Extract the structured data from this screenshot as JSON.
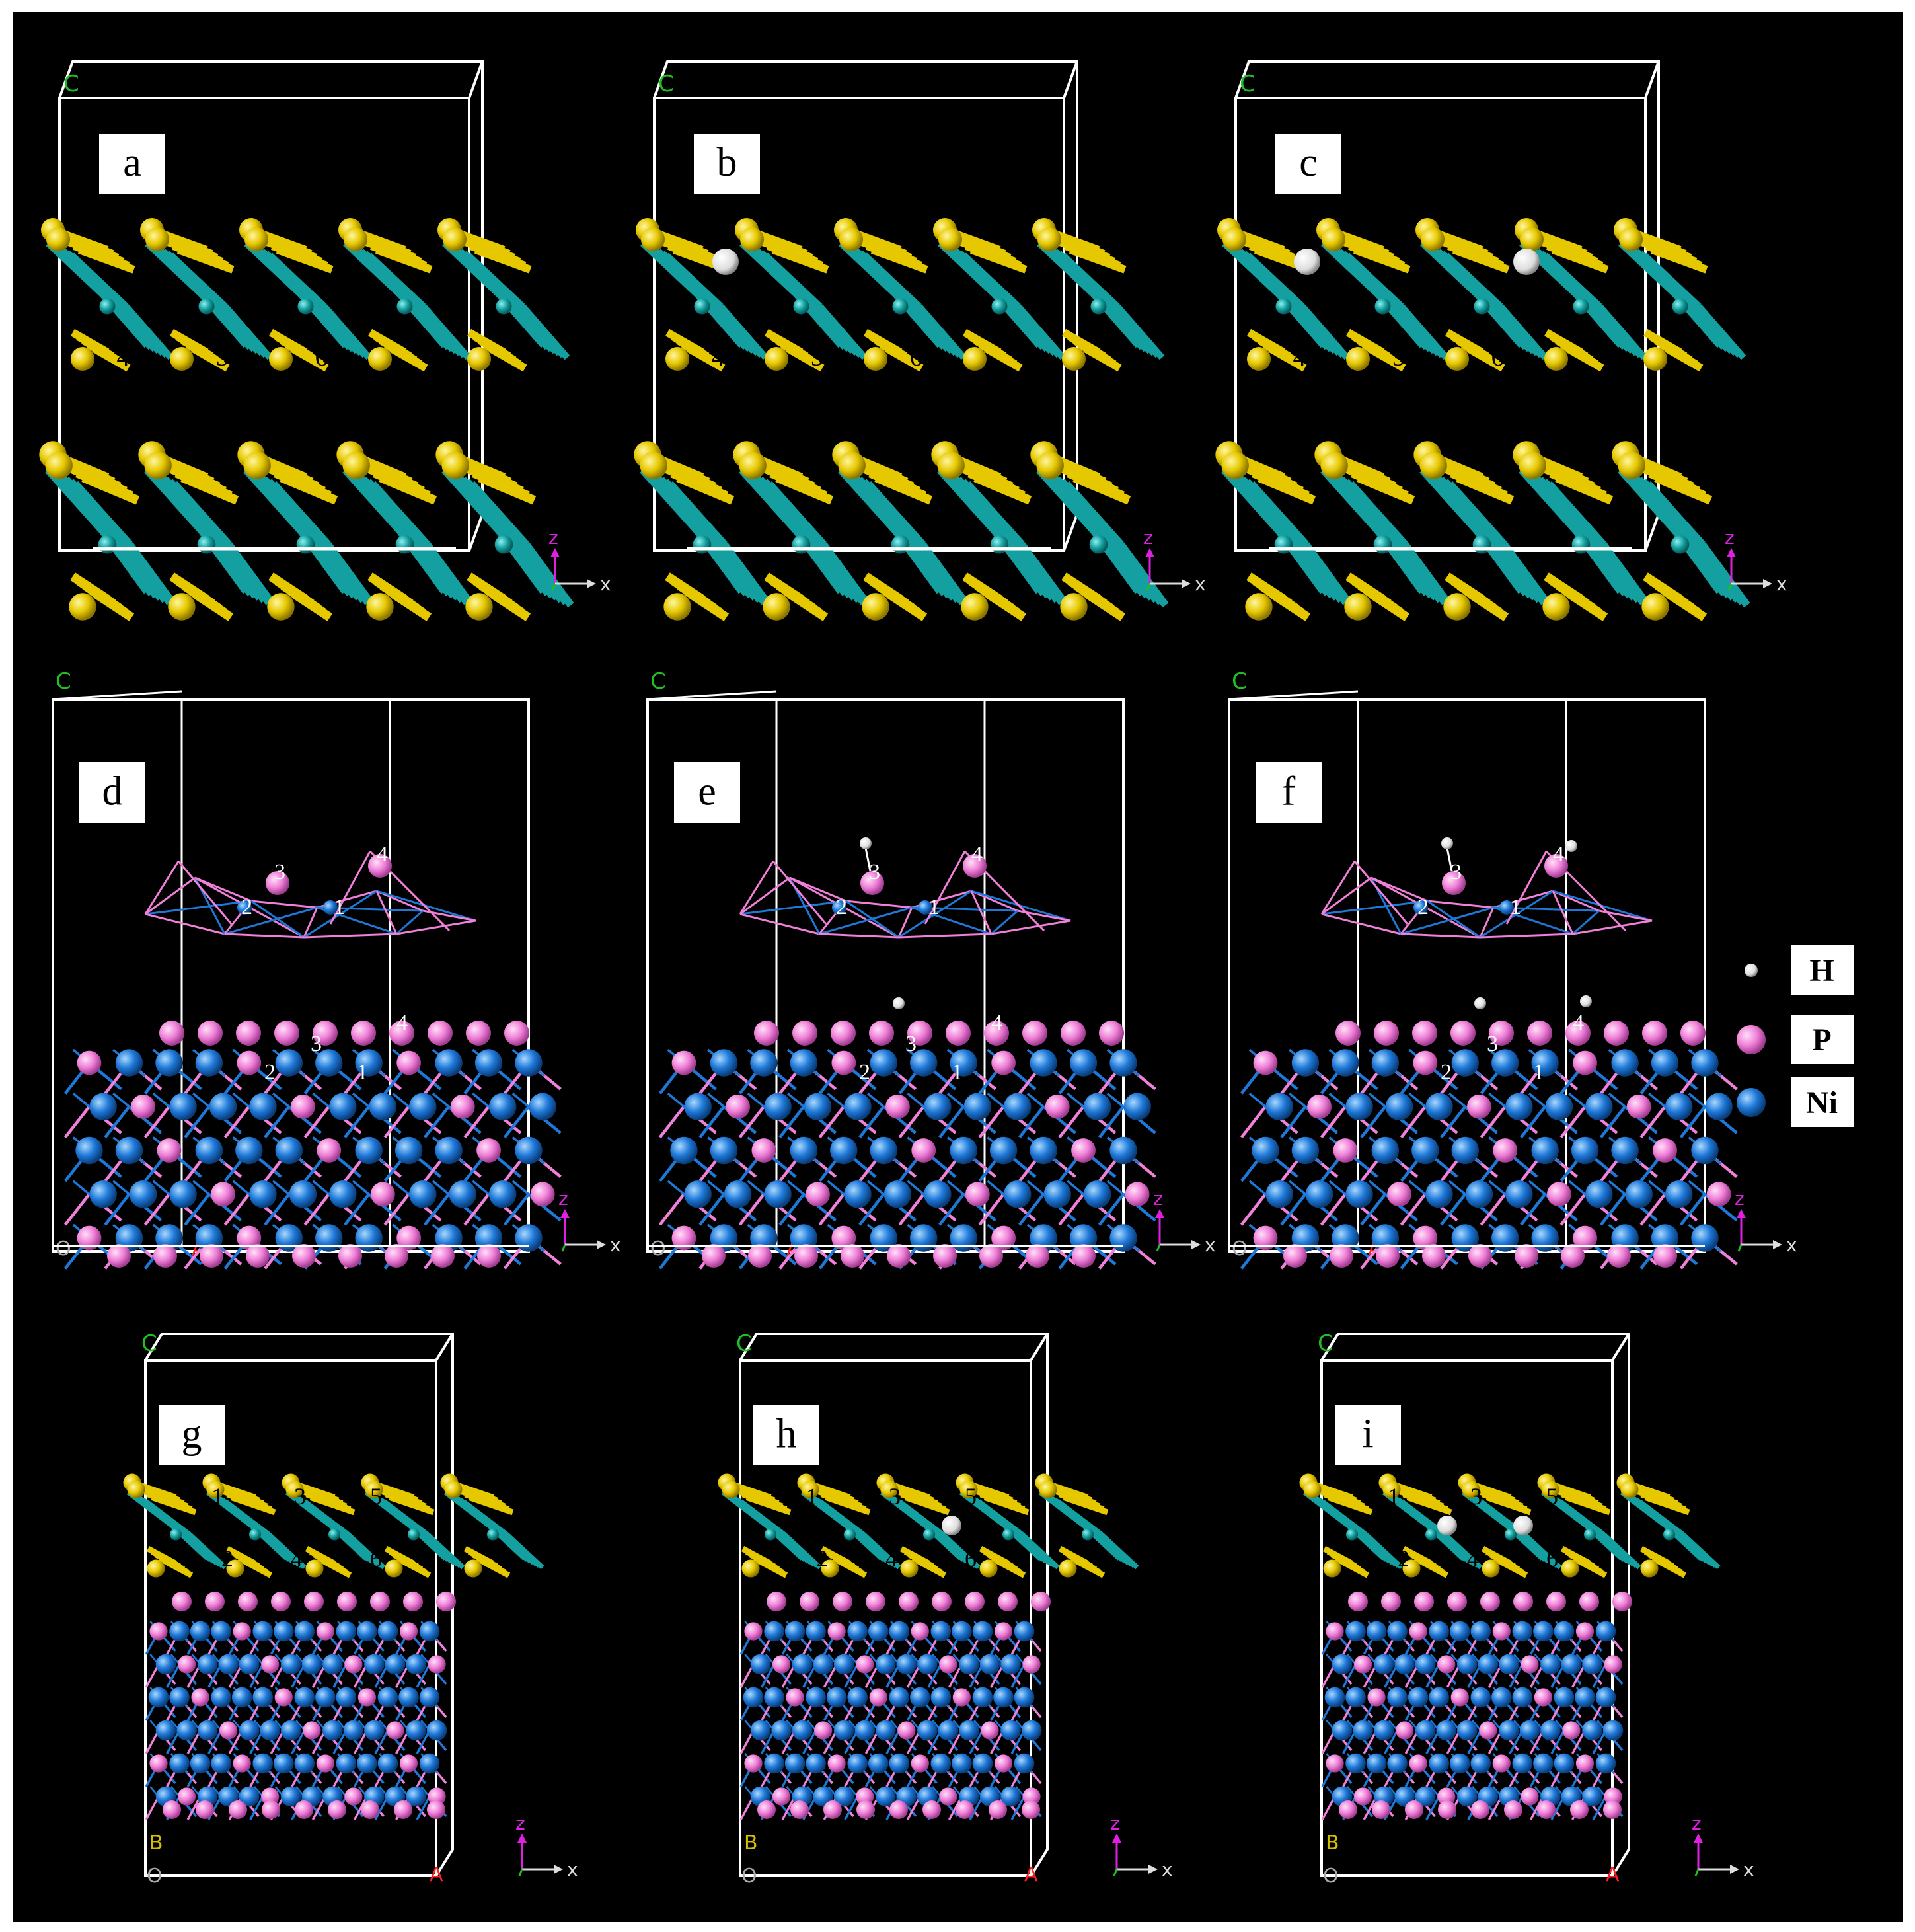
{
  "colors": {
    "background": "#000000",
    "cell": "#ffffff",
    "sulfur": "#e6c800",
    "molybdenum": "#14a0a0",
    "phosphorus": "#f080d8",
    "nickel": "#1e78d8",
    "hydrogen": "#eeeeee",
    "axis_z": "#e020e0",
    "axis_y": "#20c020",
    "axis_x": "#dddddd",
    "label_a": "#ff2020",
    "label_b": "#d4c000",
    "label_c": "#20c020"
  },
  "panels": [
    {
      "id": "a",
      "label": "a",
      "kind": "mos2-bilayer",
      "h_atoms": 0,
      "site_numbers": [
        "1",
        "2",
        "3",
        "4",
        "5",
        "6"
      ]
    },
    {
      "id": "b",
      "label": "b",
      "kind": "mos2-bilayer",
      "h_atoms": 1,
      "site_numbers": [
        "1",
        "2",
        "3",
        "4",
        "5",
        "6"
      ]
    },
    {
      "id": "c",
      "label": "c",
      "kind": "mos2-bilayer",
      "h_atoms": 2,
      "site_numbers": [
        "1",
        "2",
        "3",
        "4",
        "5",
        "6"
      ]
    },
    {
      "id": "d",
      "label": "d",
      "kind": "ni2p",
      "h_atoms": 0,
      "site_numbers": [
        "1",
        "2",
        "3",
        "4"
      ]
    },
    {
      "id": "e",
      "label": "e",
      "kind": "ni2p",
      "h_atoms": 1,
      "site_numbers": [
        "1",
        "2",
        "3",
        "4"
      ]
    },
    {
      "id": "f",
      "label": "f",
      "kind": "ni2p",
      "h_atoms": 2,
      "site_numbers": [
        "1",
        "2",
        "3",
        "4"
      ]
    },
    {
      "id": "g",
      "label": "g",
      "kind": "heterostructure",
      "h_atoms": 0,
      "site_numbers": [
        "1",
        "2",
        "3",
        "4",
        "5",
        "6"
      ]
    },
    {
      "id": "h",
      "label": "h",
      "kind": "heterostructure",
      "h_atoms": 1,
      "site_numbers": [
        "1",
        "2",
        "3",
        "4",
        "5",
        "6"
      ]
    },
    {
      "id": "i",
      "label": "i",
      "kind": "heterostructure",
      "h_atoms": 2,
      "site_numbers": [
        "1",
        "2",
        "3",
        "4",
        "5",
        "6"
      ]
    }
  ],
  "axis_labels": {
    "z": "z",
    "x": "x",
    "y": "y"
  },
  "cell_labels": {
    "c": "C",
    "a": "A",
    "b": "B",
    "origin": "O"
  },
  "legend": [
    {
      "symbol": "H",
      "color": "#eeeeee",
      "size": "small"
    },
    {
      "symbol": "P",
      "color": "#f080d8",
      "size": "medium"
    },
    {
      "symbol": "Ni",
      "color": "#1e78d8",
      "size": "medium"
    }
  ]
}
